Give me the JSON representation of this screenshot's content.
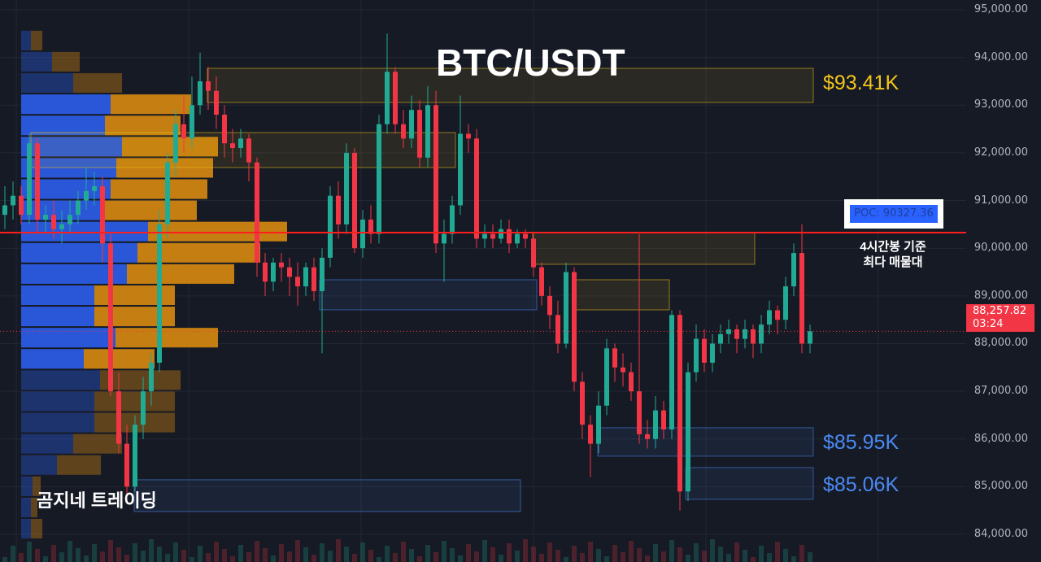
{
  "chart_data": {
    "type": "candlestick",
    "title": "BTC/USDT",
    "ylim": [
      84000,
      95000
    ],
    "y_ticks": [
      "95,000.00",
      "94,000.00",
      "93,000.00",
      "92,000.00",
      "91,000.00",
      "90,000.00",
      "89,000.00",
      "88,000.00",
      "87,000.00",
      "86,000.00",
      "85,000.00",
      "84,000.00"
    ],
    "y_tick_values": [
      95000,
      94000,
      93000,
      92000,
      91000,
      90000,
      89000,
      88000,
      87000,
      86000,
      85000,
      84000
    ],
    "grid": true,
    "colors": {
      "up": "#22ab94",
      "down": "#f23645",
      "background": "#161a25",
      "poc_line": "#ff1e1e",
      "buy_volume": "#2b5ce6",
      "sell_volume": "#d4870f",
      "yellow_zone": "#f0c419",
      "blue_zone": "#4a8af4"
    },
    "ohlc": [
      [
        90700,
        91300,
        90400,
        90900
      ],
      [
        90900,
        91400,
        90600,
        91100
      ],
      [
        91100,
        91300,
        90500,
        90700
      ],
      [
        90700,
        92400,
        90500,
        92200
      ],
      [
        92200,
        92300,
        90300,
        90600
      ],
      [
        90600,
        90900,
        90300,
        90700
      ],
      [
        90700,
        91000,
        90200,
        90400
      ],
      [
        90400,
        90800,
        90100,
        90500
      ],
      [
        90500,
        91000,
        90300,
        90700
      ],
      [
        90700,
        91200,
        90500,
        91000
      ],
      [
        91000,
        91700,
        90800,
        91200
      ],
      [
        91200,
        91600,
        90900,
        91300
      ],
      [
        91300,
        91500,
        89700,
        90100
      ],
      [
        90100,
        90300,
        86900,
        87000
      ],
      [
        87000,
        87400,
        85700,
        85900
      ],
      [
        85900,
        86300,
        84800,
        85000
      ],
      [
        85000,
        86500,
        84900,
        86300
      ],
      [
        86300,
        87300,
        86000,
        87000
      ],
      [
        87000,
        87800,
        86700,
        87600
      ],
      [
        87600,
        90800,
        87400,
        90500
      ],
      [
        90500,
        92000,
        90200,
        91800
      ],
      [
        91800,
        92900,
        91500,
        92600
      ],
      [
        92600,
        93200,
        92000,
        92300
      ],
      [
        92300,
        93600,
        92100,
        93000
      ],
      [
        93000,
        94100,
        92800,
        93500
      ],
      [
        93500,
        93800,
        92900,
        93300
      ],
      [
        93300,
        93600,
        92500,
        92800
      ],
      [
        92800,
        93000,
        91900,
        92200
      ],
      [
        92200,
        92500,
        91800,
        92100
      ],
      [
        92100,
        92500,
        91900,
        92300
      ],
      [
        92300,
        92400,
        91400,
        91800
      ],
      [
        91800,
        91900,
        89400,
        89700
      ],
      [
        89700,
        89900,
        89000,
        89300
      ],
      [
        89300,
        89800,
        89100,
        89700
      ],
      [
        89700,
        89900,
        89300,
        89600
      ],
      [
        89600,
        89800,
        89000,
        89400
      ],
      [
        89400,
        89700,
        88800,
        89200
      ],
      [
        89200,
        89700,
        89000,
        89600
      ],
      [
        89600,
        89800,
        88900,
        89100
      ],
      [
        89100,
        90000,
        87800,
        89800
      ],
      [
        89800,
        91300,
        89600,
        91100
      ],
      [
        91100,
        91400,
        90200,
        90500
      ],
      [
        90500,
        92200,
        90300,
        92000
      ],
      [
        92000,
        92100,
        89900,
        90000
      ],
      [
        90000,
        90800,
        89800,
        90600
      ],
      [
        90600,
        90900,
        90100,
        90300
      ],
      [
        90300,
        92800,
        90100,
        92600
      ],
      [
        92600,
        94500,
        92400,
        93700
      ],
      [
        93700,
        93800,
        92400,
        92600
      ],
      [
        92600,
        92900,
        92100,
        92300
      ],
      [
        92300,
        93200,
        92100,
        92900
      ],
      [
        92900,
        93100,
        91700,
        91900
      ],
      [
        91900,
        93400,
        91700,
        93000
      ],
      [
        93000,
        93300,
        89900,
        90100
      ],
      [
        90100,
        90600,
        89300,
        90300
      ],
      [
        90300,
        91100,
        90100,
        90900
      ],
      [
        90900,
        93200,
        90700,
        92400
      ],
      [
        92400,
        92600,
        92000,
        92300
      ],
      [
        92300,
        92500,
        90000,
        90200
      ],
      [
        90200,
        90500,
        90000,
        90300
      ],
      [
        90300,
        90500,
        90000,
        90200
      ],
      [
        90200,
        90600,
        90100,
        90400
      ],
      [
        90400,
        90600,
        89900,
        90100
      ],
      [
        90100,
        90400,
        90000,
        90300
      ],
      [
        90300,
        90400,
        90000,
        90200
      ],
      [
        90200,
        90300,
        89400,
        89600
      ],
      [
        89600,
        89700,
        88800,
        89000
      ],
      [
        89000,
        89200,
        88300,
        88600
      ],
      [
        88600,
        88900,
        87800,
        88000
      ],
      [
        88000,
        89700,
        87900,
        89500
      ],
      [
        89500,
        89600,
        87000,
        87200
      ],
      [
        87200,
        87400,
        86000,
        86300
      ],
      [
        86300,
        86500,
        85200,
        85900
      ],
      [
        85900,
        87000,
        85700,
        86700
      ],
      [
        86700,
        88100,
        86500,
        87900
      ],
      [
        87900,
        88000,
        87200,
        87500
      ],
      [
        87500,
        87800,
        87100,
        87400
      ],
      [
        87400,
        87600,
        86800,
        87000
      ],
      [
        87000,
        90300,
        85900,
        86100
      ],
      [
        86100,
        86400,
        85800,
        86000
      ],
      [
        86000,
        86900,
        85800,
        86600
      ],
      [
        86600,
        86800,
        86000,
        86200
      ],
      [
        86200,
        88700,
        86000,
        88600
      ],
      [
        88600,
        88700,
        84500,
        84900
      ],
      [
        84900,
        87600,
        84700,
        87400
      ],
      [
        87400,
        88400,
        87200,
        88100
      ],
      [
        88100,
        88300,
        87400,
        87600
      ],
      [
        87600,
        88200,
        87400,
        88000
      ],
      [
        88000,
        88400,
        87800,
        88200
      ],
      [
        88200,
        88500,
        88000,
        88300
      ],
      [
        88300,
        88400,
        87800,
        88100
      ],
      [
        88100,
        88500,
        87900,
        88300
      ],
      [
        88300,
        88400,
        87700,
        88000
      ],
      [
        88000,
        88600,
        87800,
        88400
      ],
      [
        88400,
        88900,
        88200,
        88700
      ],
      [
        88700,
        88800,
        88200,
        88500
      ],
      [
        88500,
        89400,
        88300,
        89200
      ],
      [
        89200,
        90100,
        89000,
        89900
      ],
      [
        89900,
        90500,
        87800,
        88000
      ],
      [
        88000,
        88400,
        87800,
        88258
      ]
    ],
    "last_price": "88,257.82",
    "countdown": "03:24",
    "volume_profile": {
      "price_top": 94560,
      "bin_size": 445,
      "rows": [
        {
          "buy": 12,
          "sell": 14,
          "value_area": false
        },
        {
          "buy": 38,
          "sell": 34,
          "value_area": false
        },
        {
          "buy": 64,
          "sell": 60,
          "value_area": false
        },
        {
          "buy": 110,
          "sell": 99,
          "value_area": true
        },
        {
          "buy": 103,
          "sell": 93,
          "value_area": true
        },
        {
          "buy": 124,
          "sell": 118,
          "value_area": true
        },
        {
          "buy": 117,
          "sell": 119,
          "value_area": true
        },
        {
          "buy": 110,
          "sell": 119,
          "value_area": true
        },
        {
          "buy": 103,
          "sell": 113,
          "value_area": true
        },
        {
          "buy": 156,
          "sell": 171,
          "value_area": true
        },
        {
          "buy": 143,
          "sell": 151,
          "value_area": true
        },
        {
          "buy": 130,
          "sell": 132,
          "value_area": true
        },
        {
          "buy": 90,
          "sell": 99,
          "value_area": true
        },
        {
          "buy": 90,
          "sell": 99,
          "value_area": true
        },
        {
          "buy": 116,
          "sell": 126,
          "value_area": true
        },
        {
          "buy": 77,
          "sell": 87,
          "value_area": true
        },
        {
          "buy": 97,
          "sell": 99,
          "value_area": false
        },
        {
          "buy": 90,
          "sell": 99,
          "value_area": false
        },
        {
          "buy": 90,
          "sell": 99,
          "value_area": false
        },
        {
          "buy": 64,
          "sell": 60,
          "value_area": false
        },
        {
          "buy": 44,
          "sell": 54,
          "value_area": false
        },
        {
          "buy": 14,
          "sell": 10,
          "value_area": false
        },
        {
          "buy": 12,
          "sell": 8,
          "value_area": false
        },
        {
          "buy": 12,
          "sell": 14,
          "value_area": false
        }
      ]
    },
    "poc": {
      "price": 90327.36,
      "label": "POC: 90327.36"
    },
    "zones": [
      {
        "color": "yellow",
        "top": 93772,
        "bottom": 93056,
        "label": "$93.41K"
      },
      {
        "color": "yellow",
        "top": 92425,
        "bottom": 91692
      },
      {
        "color": "yellow",
        "top": 90328,
        "bottom": 89663
      },
      {
        "color": "yellow",
        "top": 89339,
        "bottom": 88708
      },
      {
        "color": "blue",
        "top": 89339,
        "bottom": 88708
      },
      {
        "color": "blue",
        "top": 86236,
        "bottom": 85640,
        "label": "$85.95K"
      },
      {
        "color": "blue",
        "top": 85401,
        "bottom": 84736,
        "label": "$85.06K"
      },
      {
        "color": "blue",
        "top": 85145,
        "bottom": 84480
      }
    ]
  },
  "annotations": {
    "title": "BTC/USDT",
    "zone_top_label": "$93.41K",
    "zone_mid_label": "$85.95K",
    "zone_low_label": "$85.06K",
    "poc_note_line1": "4시간봉 기준",
    "poc_note_line2": "최다 매물대",
    "brand": "곰지네 트레이딩"
  }
}
